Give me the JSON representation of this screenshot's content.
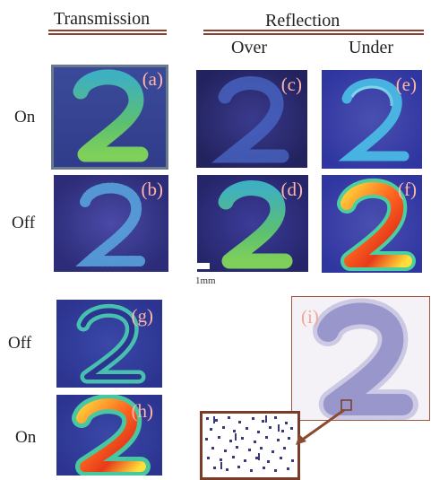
{
  "headers": {
    "transmission": "Transmission",
    "reflection": "Reflection",
    "over": "Over",
    "under": "Under"
  },
  "rows": {
    "on_1": "On",
    "off_1": "Off",
    "off_2": "Off",
    "on_2": "On"
  },
  "panels": {
    "a": "(a)",
    "b": "(b)",
    "c": "(c)",
    "d": "(d)",
    "e": "(e)",
    "f": "(f)",
    "g": "(g)",
    "h": "(h)",
    "i": "(i)"
  },
  "scale_bar": "1mm",
  "colors": {
    "rule": "#8b3f2e",
    "panel_label": "#ffb6a8",
    "background_panel": "#2a2a7a",
    "arrow": "#8b4a30"
  }
}
